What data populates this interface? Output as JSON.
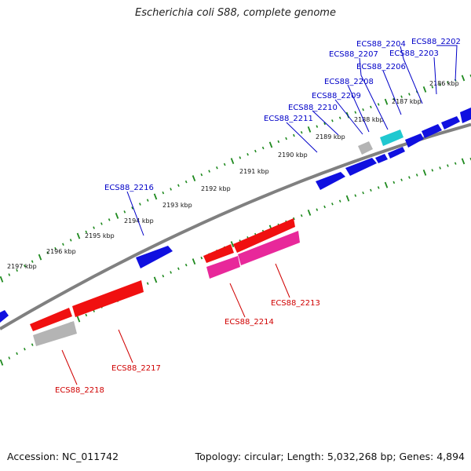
{
  "title": "Escherichia coli S88, complete genome",
  "footer": {
    "accession": "Accession: NC_011742",
    "stats": "Topology: circular; Length: 5,032,268 bp; Genes: 4,894"
  },
  "colors": {
    "forward_gene": "#1010e0",
    "reverse_gene": "#f01010",
    "pink_gene": "#e8289a",
    "cyan_gene": "#20c8d0",
    "gray_gene": "#b4b4b4",
    "backbone": "#808080",
    "tick": "#1f8a1f",
    "forward_label": "#0000c8",
    "reverse_label": "#d00000"
  },
  "scale_labels": [
    "2186 kbp",
    "2187 kbp",
    "2188 kbp",
    "2189 kbp",
    "2190 kbp",
    "2191 kbp",
    "2192 kbp",
    "2193 kbp",
    "2194 kbp",
    "2195 kbp",
    "2196 kbp",
    "2197 kbp"
  ],
  "genes": {
    "forward": [
      {
        "name": "ECS88_2202",
        "color": "blue"
      },
      {
        "name": "ECS88_2203",
        "color": "blue"
      },
      {
        "name": "ECS88_2204",
        "color": "blue"
      },
      {
        "name": "ECS88_2206",
        "color": "cyan"
      },
      {
        "name": "ECS88_2207",
        "color": "blue"
      },
      {
        "name": "ECS88_2208",
        "color": "gray"
      },
      {
        "name": "ECS88_2209",
        "color": "blue"
      },
      {
        "name": "ECS88_2210",
        "color": "blue"
      },
      {
        "name": "ECS88_2211",
        "color": "blue"
      },
      {
        "name": "ECS88_2216",
        "color": "blue"
      }
    ],
    "reverse": [
      {
        "name": "ECS88_2213",
        "color": "pink"
      },
      {
        "name": "ECS88_2214",
        "color": "red"
      },
      {
        "name": "ECS88_2217",
        "color": "red"
      },
      {
        "name": "ECS88_2218",
        "color": "gray"
      }
    ]
  }
}
